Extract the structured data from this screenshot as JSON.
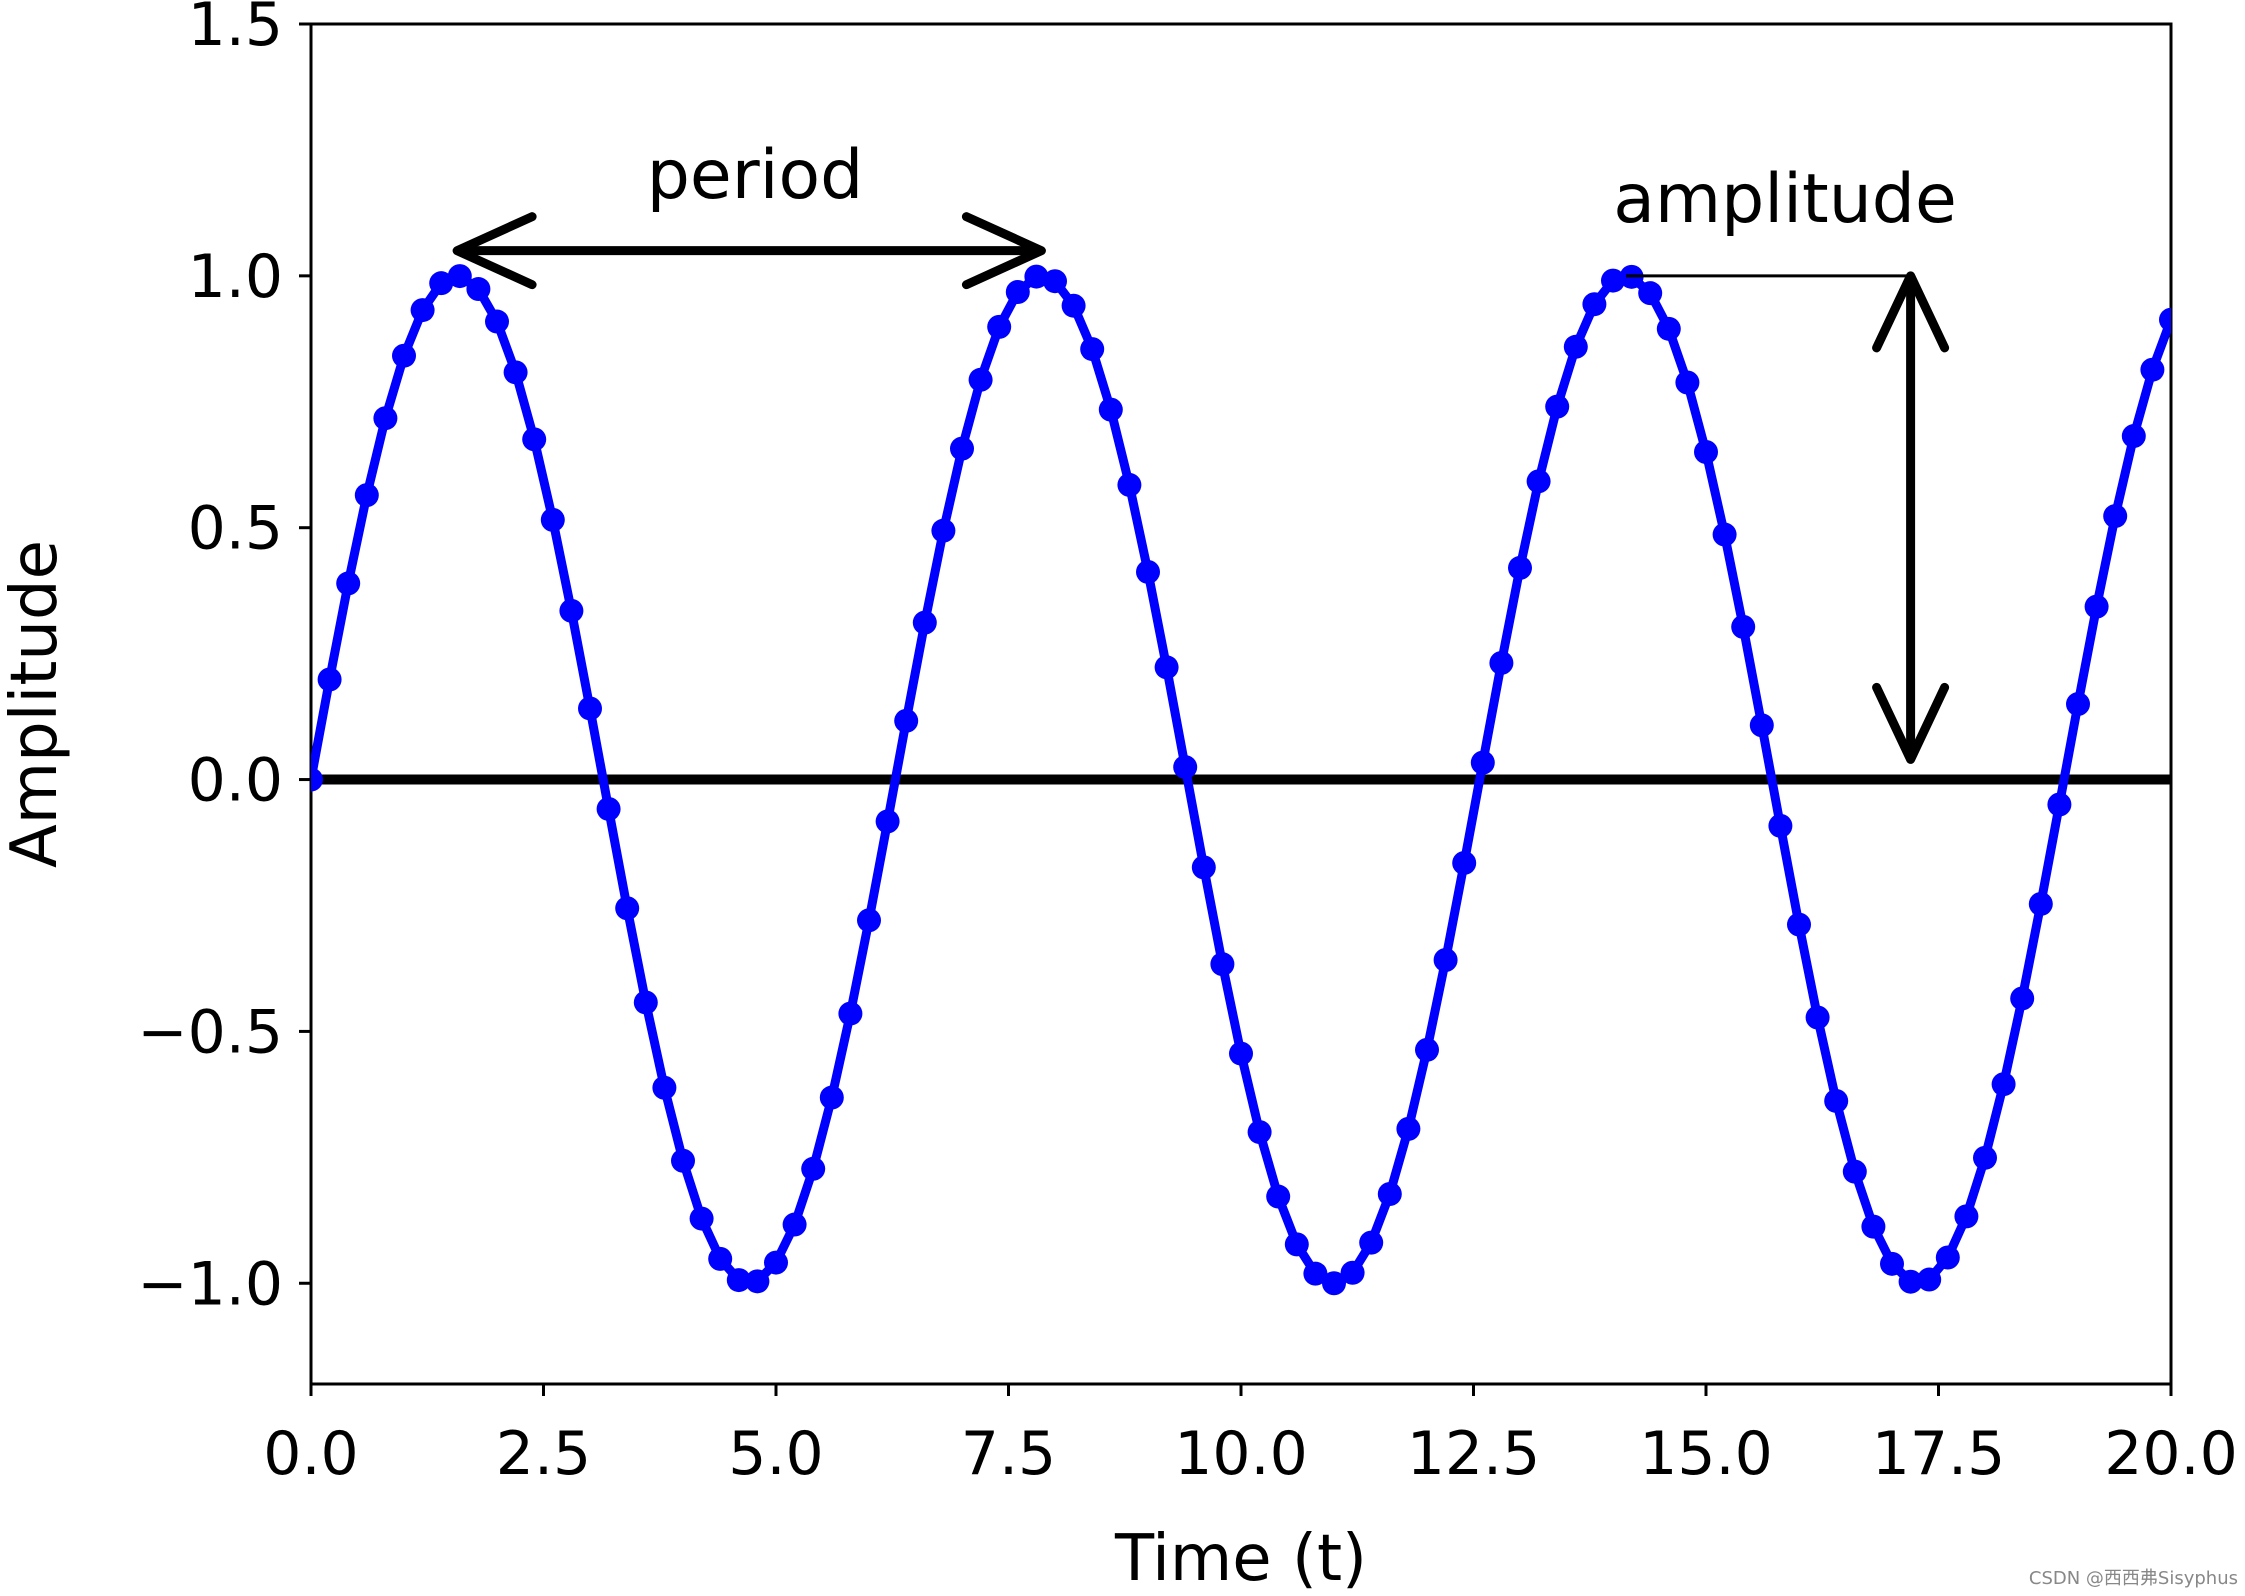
{
  "chart_data": {
    "type": "line",
    "title": "",
    "xlabel": "Time (t)",
    "ylabel": "Amplitude",
    "xlim": [
      0,
      20
    ],
    "ylim": [
      -1.2,
      1.5
    ],
    "xticks": [
      "0.0",
      "2.5",
      "5.0",
      "7.5",
      "10.0",
      "12.5",
      "15.0",
      "17.5",
      "20.0"
    ],
    "yticks": [
      "1.5",
      "1.0",
      "0.5",
      "0.0",
      "−0.5",
      "−1.0"
    ],
    "grid": false,
    "legend": "none",
    "series": [
      {
        "function": "sin(t)",
        "t_start": 0,
        "t_end": 20,
        "step": 0.2,
        "marker": "circle",
        "color": "#0000ff"
      }
    ],
    "baseline": {
      "y": 0,
      "color": "#000000"
    },
    "annotations": [
      {
        "text": "period",
        "type": "double-arrow-horizontal",
        "from_t": 1.571,
        "to_t": 7.854,
        "y": 1.05
      },
      {
        "text": "amplitude",
        "type": "double-arrow-vertical",
        "t": 17.2,
        "from_y": 0.04,
        "to_y": 1.0
      }
    ]
  },
  "watermark": "CSDN @西西弗Sisyphus"
}
